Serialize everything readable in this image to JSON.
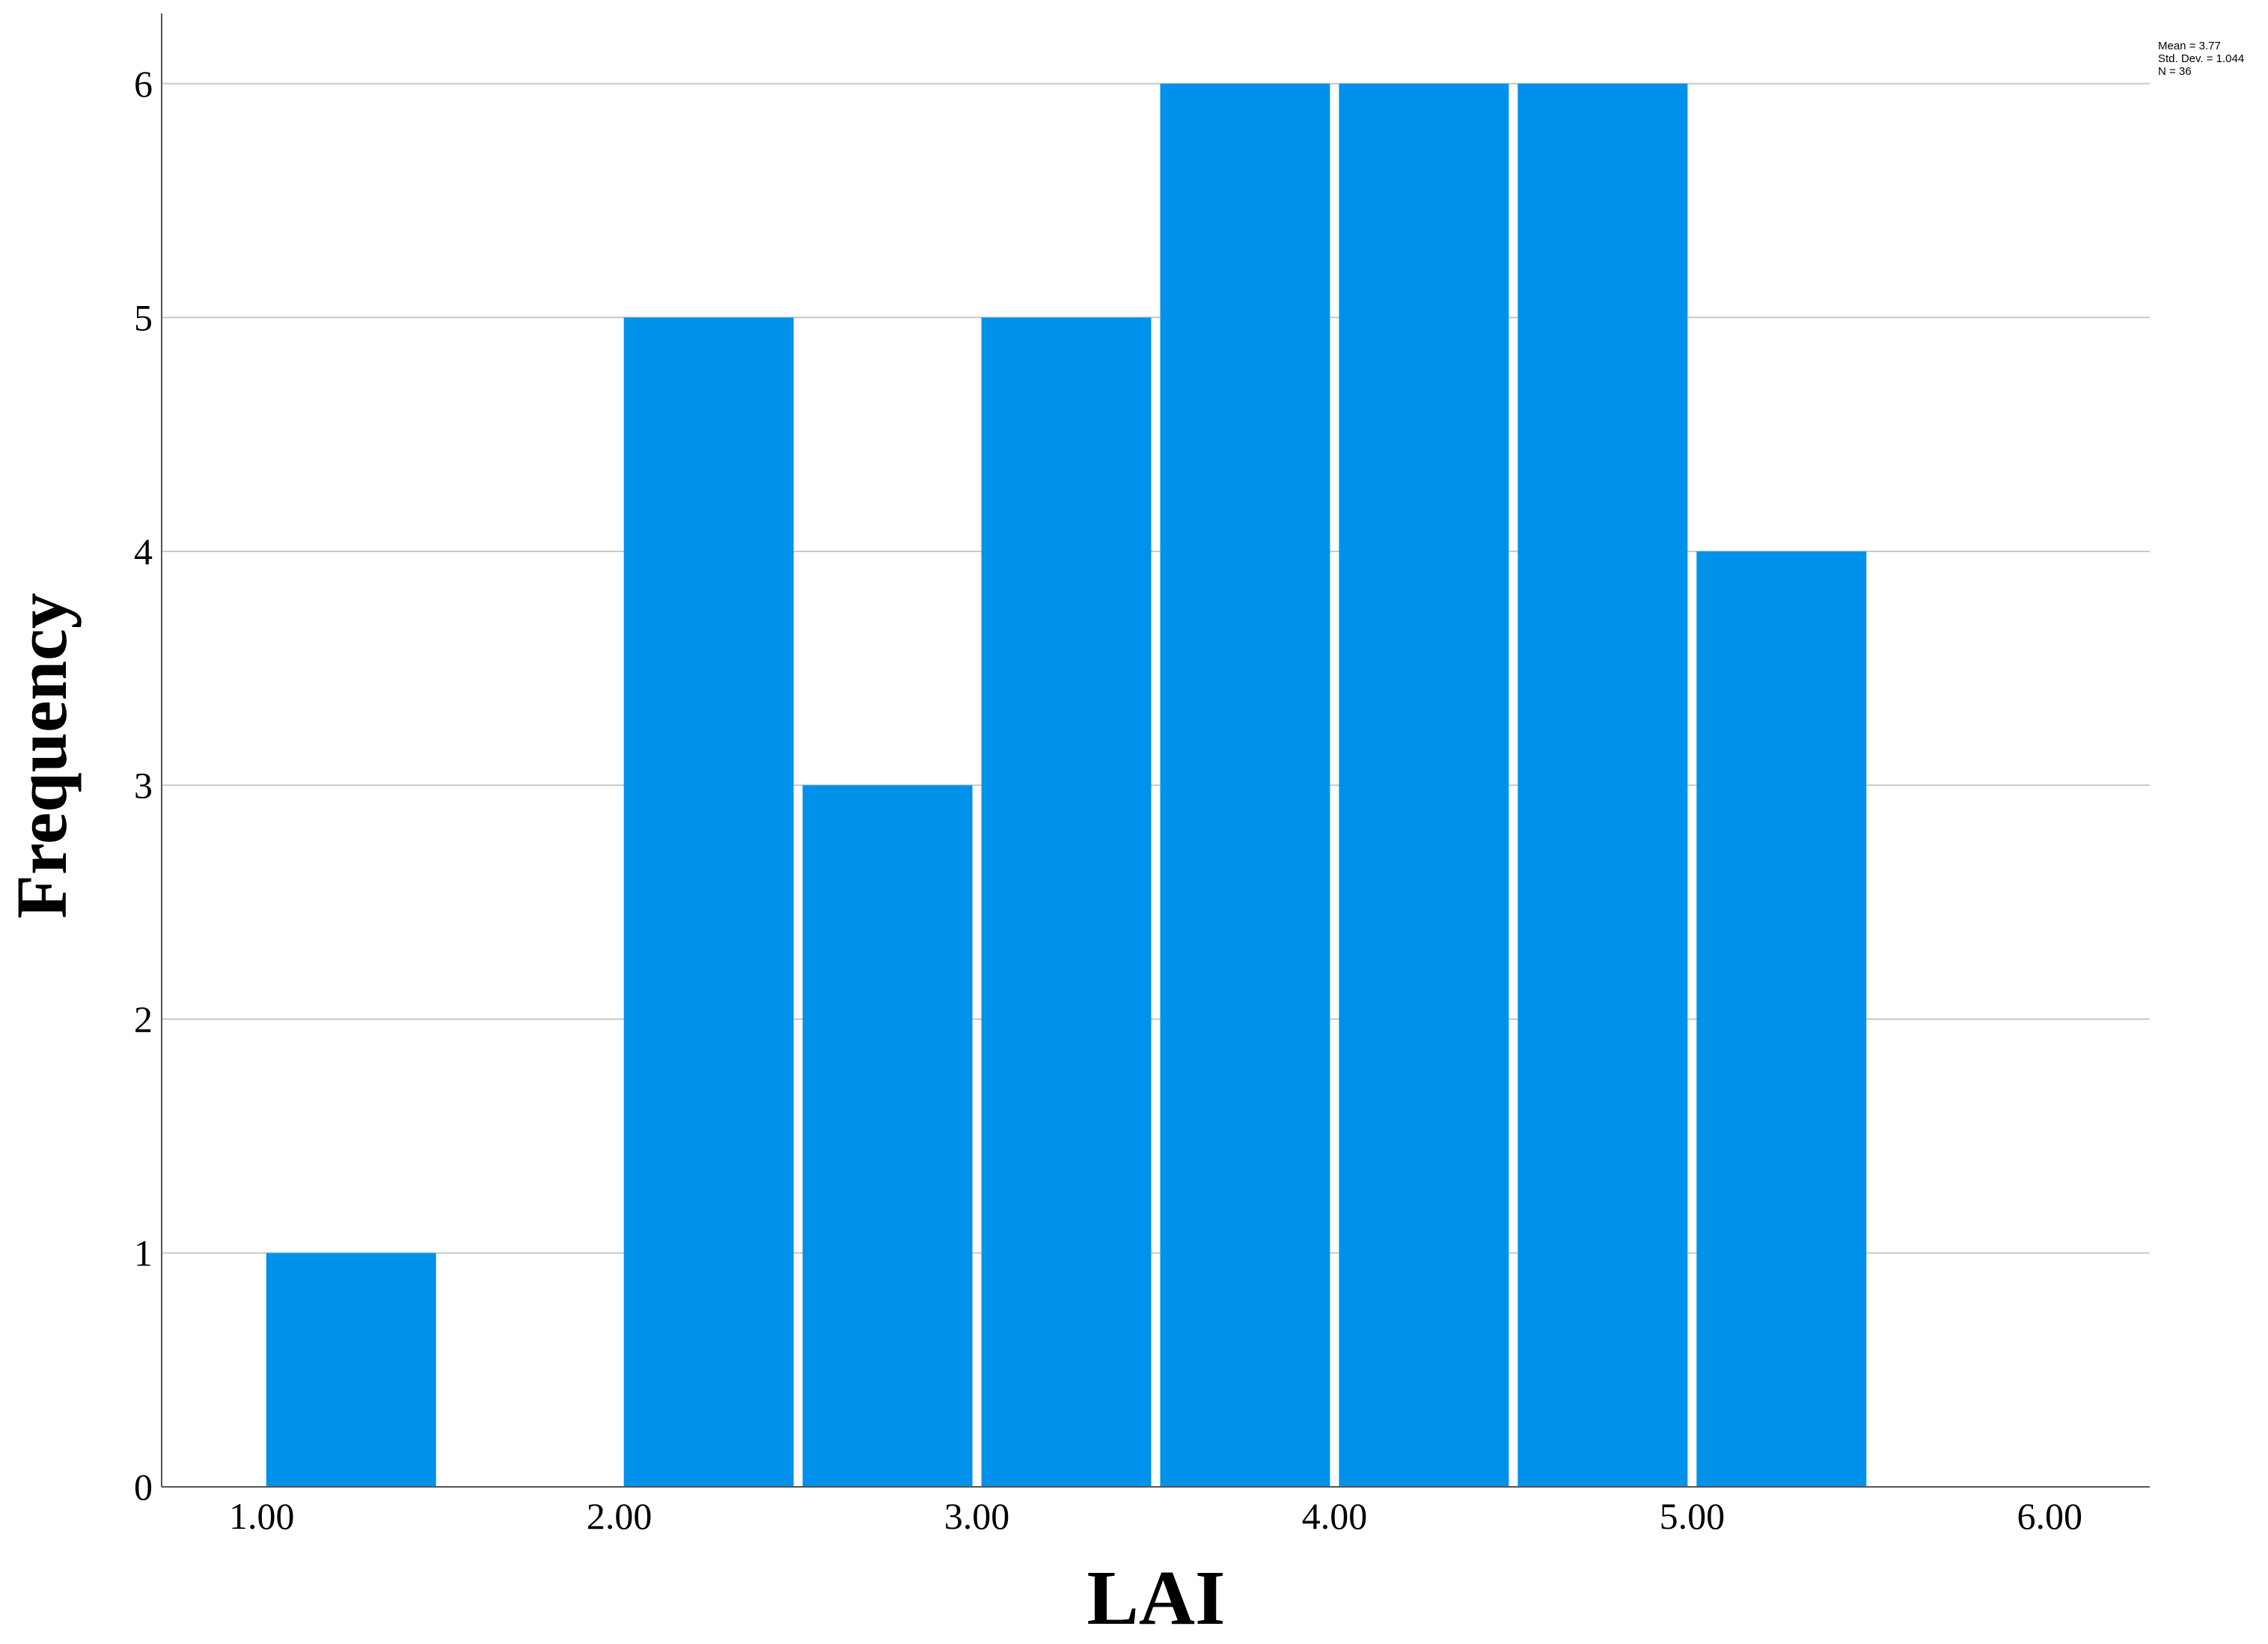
{
  "chart_data": {
    "type": "bar",
    "subtype": "histogram",
    "xlabel": "LAI",
    "ylabel": "Frequency",
    "bins": [
      {
        "start": 1.0,
        "end": 1.5,
        "count": 1
      },
      {
        "start": 1.5,
        "end": 2.0,
        "count": 0
      },
      {
        "start": 2.0,
        "end": 2.5,
        "count": 5
      },
      {
        "start": 2.5,
        "end": 3.0,
        "count": 3
      },
      {
        "start": 3.0,
        "end": 3.5,
        "count": 5
      },
      {
        "start": 3.5,
        "end": 4.0,
        "count": 6
      },
      {
        "start": 4.0,
        "end": 4.5,
        "count": 6
      },
      {
        "start": 4.5,
        "end": 5.0,
        "count": 6
      },
      {
        "start": 5.0,
        "end": 5.5,
        "count": 4
      }
    ],
    "x_ticks": [
      1.0,
      2.0,
      3.0,
      4.0,
      5.0,
      6.0
    ],
    "x_tick_labels": [
      "1.00",
      "2.00",
      "3.00",
      "4.00",
      "5.00",
      "6.00"
    ],
    "y_ticks": [
      0,
      1,
      2,
      3,
      4,
      5,
      6
    ],
    "y_tick_labels": [
      "0",
      "1",
      "2",
      "3",
      "4",
      "5",
      "6"
    ],
    "xlim": [
      0.72,
      6.28
    ],
    "ylim": [
      0,
      6.3
    ],
    "grid": "horizontal",
    "bar_color": "#0091EA",
    "grid_color": "#c8c8c8",
    "stats": {
      "mean": "Mean = 3.77",
      "std_dev": "Std. Dev. = 1.044",
      "n": "N = 36"
    },
    "stats_placement": "top-right"
  }
}
